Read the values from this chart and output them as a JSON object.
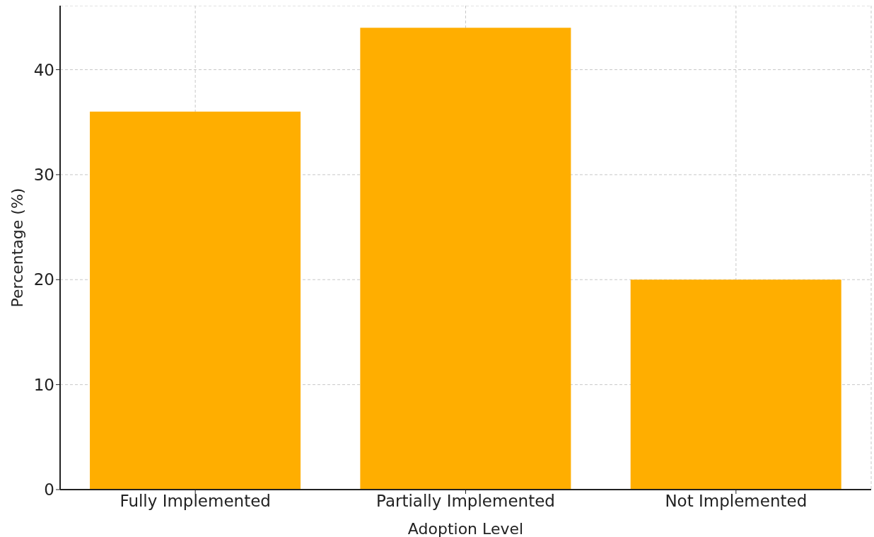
{
  "chart_data": {
    "type": "bar",
    "xlabel": "Adoption Level",
    "ylabel": "Percentage (%)",
    "categories": [
      "Fully Implemented",
      "Partially Implemented",
      "Not Implemented"
    ],
    "values": [
      36,
      44,
      20
    ],
    "color": "#ffae00",
    "ylim": [
      0,
      46.1
    ],
    "yticks": [
      0,
      10,
      20,
      30,
      40
    ],
    "grid": true
  }
}
